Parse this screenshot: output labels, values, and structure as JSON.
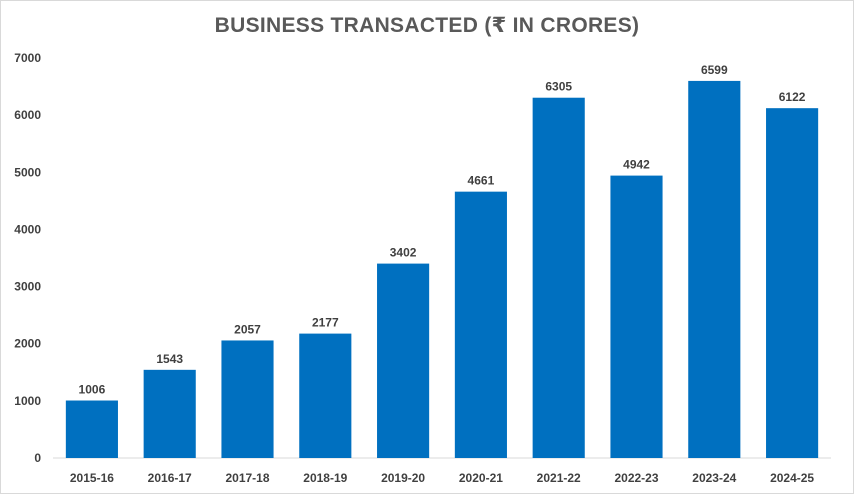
{
  "chart_data": {
    "type": "bar",
    "title": "BUSINESS TRANSACTED (₹ IN CRORES)",
    "categories": [
      "2015-16",
      "2016-17",
      "2017-18",
      "2018-19",
      "2019-20",
      "2020-21",
      "2021-22",
      "2022-23",
      "2023-24",
      "2024-25"
    ],
    "values": [
      1006,
      1543,
      2057,
      2177,
      3402,
      4661,
      6305,
      4942,
      6599,
      6122
    ],
    "xlabel": "",
    "ylabel": "",
    "ylim": [
      0,
      7000
    ],
    "yticks": [
      0,
      1000,
      2000,
      3000,
      4000,
      5000,
      6000,
      7000
    ],
    "grid": false,
    "legend": "none",
    "bar_color": "#0070C0"
  }
}
